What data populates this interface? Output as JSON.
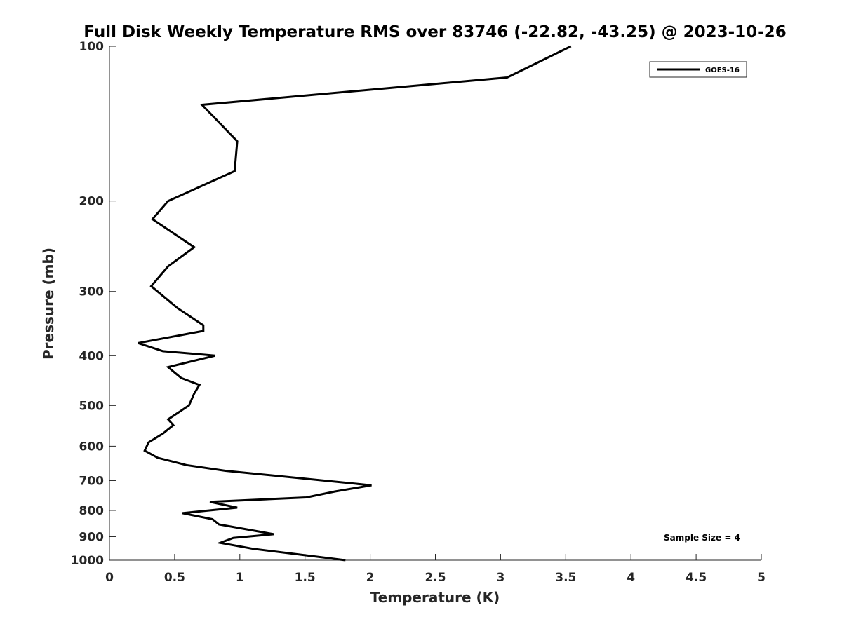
{
  "chart_data": {
    "type": "line",
    "title": "Full Disk Weekly Temperature RMS over 83746 (-22.82, -43.25) @ 2023-10-26",
    "xlabel": "Temperature (K)",
    "ylabel": "Pressure (mb)",
    "xlim": [
      0,
      5
    ],
    "ylim": [
      100,
      1000
    ],
    "y_scale": "log",
    "y_reversed": true,
    "x_ticks": [
      "0",
      "0.5",
      "1",
      "1.5",
      "2",
      "2.5",
      "3",
      "3.5",
      "4",
      "4.5",
      "5"
    ],
    "y_ticks": [
      "100",
      "200",
      "300",
      "400",
      "500",
      "600",
      "700",
      "800",
      "900",
      "1000"
    ],
    "grid": false,
    "legend_position": "top-right",
    "annotation": "Sample Size = 4",
    "series": [
      {
        "name": "GOES-16",
        "color": "#000000",
        "x": [
          3.54,
          3.05,
          0.71,
          0.98,
          0.96,
          0.45,
          0.33,
          0.65,
          0.45,
          0.32,
          0.52,
          0.72,
          0.72,
          0.22,
          0.41,
          0.81,
          0.45,
          0.55,
          0.69,
          0.65,
          0.61,
          0.45,
          0.49,
          0.41,
          0.3,
          0.27,
          0.37,
          0.59,
          0.89,
          2.01,
          1.73,
          1.51,
          0.77,
          0.98,
          0.56,
          0.79,
          0.84,
          1.26,
          0.95,
          0.85,
          1.1,
          1.81
        ],
        "y": [
          100,
          115,
          130,
          153,
          175,
          200,
          217,
          246,
          268,
          293,
          323,
          349,
          358,
          378,
          392,
          400,
          421,
          442,
          456,
          474,
          500,
          532,
          546,
          567,
          590,
          612,
          632,
          653,
          670,
          715,
          735,
          755,
          770,
          790,
          810,
          832,
          852,
          890,
          905,
          925,
          950,
          1000
        ]
      }
    ]
  }
}
